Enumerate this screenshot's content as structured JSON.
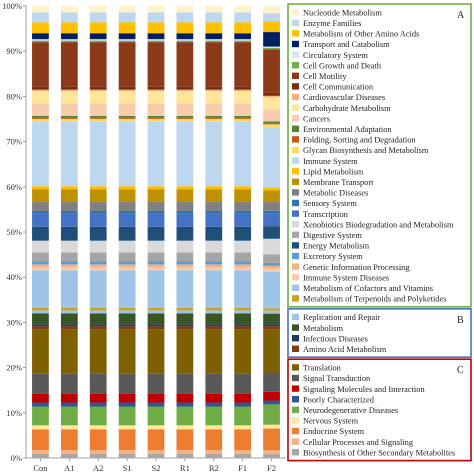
{
  "chart_data": {
    "type": "bar",
    "stacked": true,
    "title": "",
    "xlabel": "",
    "ylabel": "",
    "ylim": [
      0,
      100
    ],
    "y_tick_labels": [
      "0%",
      "10%",
      "20%",
      "30%",
      "40%",
      "50%",
      "60%",
      "70%",
      "80%",
      "90%",
      "100%"
    ],
    "grid": false,
    "legend_position": "right",
    "categories": [
      "Con",
      "A1",
      "A2",
      "S1",
      "S2",
      "R1",
      "R2",
      "F1",
      "F2"
    ],
    "series": [
      {
        "name": "Biosynthesis of Other Secondary Metabolites",
        "color": "#a6a6a6",
        "values": [
          0.8,
          0.8,
          0.8,
          0.8,
          0.8,
          0.8,
          0.8,
          0.8,
          0.8
        ]
      },
      {
        "name": "Cellular Processes and Signaling",
        "color": "#f4b183",
        "values": [
          0.8,
          0.8,
          0.8,
          0.8,
          0.8,
          0.8,
          0.8,
          0.8,
          0.8
        ]
      },
      {
        "name": "Endocrine System",
        "color": "#ed7d31",
        "values": [
          4.2,
          4.2,
          4.2,
          4.2,
          4.2,
          4.2,
          4.2,
          4.2,
          4.5
        ]
      },
      {
        "name": "Nervous System",
        "color": "#ffe699",
        "values": [
          0.8,
          0.8,
          0.8,
          0.8,
          0.8,
          0.8,
          0.8,
          0.8,
          0.8
        ]
      },
      {
        "name": "Neurodegenerative Diseases",
        "color": "#70ad47",
        "values": [
          3.8,
          3.8,
          3.8,
          3.8,
          3.8,
          3.8,
          3.8,
          3.8,
          4.2
        ]
      },
      {
        "name": "Poorly Characterized",
        "color": "#2f5597",
        "values": [
          0.8,
          0.8,
          0.8,
          0.8,
          0.8,
          0.8,
          0.8,
          0.8,
          0.8
        ]
      },
      {
        "name": "Signaling Molecules and Interaction",
        "color": "#c00000",
        "values": [
          1.8,
          1.8,
          1.8,
          1.8,
          1.8,
          1.8,
          1.8,
          1.8,
          1.8
        ]
      },
      {
        "name": "Signal Transduction",
        "color": "#595959",
        "values": [
          4.0,
          4.0,
          4.0,
          4.0,
          4.0,
          4.0,
          4.0,
          4.0,
          4.0
        ]
      },
      {
        "name": "Translation",
        "color": "#7f6000",
        "values": [
          9.0,
          9.0,
          9.0,
          9.0,
          9.0,
          9.0,
          9.0,
          9.0,
          9.0
        ]
      },
      {
        "name": "Amino Acid Metabolism",
        "color": "#843c0c",
        "values": [
          0.6,
          0.6,
          0.6,
          0.6,
          0.6,
          0.6,
          0.6,
          0.6,
          0.6
        ]
      },
      {
        "name": "Infectious Diseases",
        "color": "#1f3864",
        "values": [
          0.4,
          0.4,
          0.4,
          0.4,
          0.4,
          0.4,
          0.4,
          0.4,
          0.4
        ]
      },
      {
        "name": "Metabolism",
        "color": "#375623",
        "values": [
          2.2,
          2.2,
          2.2,
          2.2,
          2.2,
          2.2,
          2.2,
          2.2,
          2.2
        ]
      },
      {
        "name": "Replication and Repair",
        "color": "#9dc3e6",
        "values": [
          0.6,
          0.6,
          0.6,
          0.6,
          0.6,
          0.6,
          0.6,
          0.6,
          0.6
        ]
      },
      {
        "name": "Metabolism of Terpenoids and Polyketides",
        "color": "#c9a227",
        "values": [
          0.5,
          0.5,
          0.5,
          0.5,
          0.5,
          0.5,
          0.5,
          0.5,
          0.5
        ]
      },
      {
        "name": "Metabolism of Cofactors and Vitamins",
        "color": "#9dc3e6",
        "values": [
          7.6,
          7.6,
          7.6,
          7.6,
          7.6,
          7.6,
          7.6,
          7.6,
          7.6
        ]
      },
      {
        "name": "Immune System Diseases",
        "color": "#f8cbad",
        "values": [
          0.6,
          0.6,
          0.6,
          0.6,
          0.6,
          0.6,
          0.6,
          0.6,
          0.6
        ]
      },
      {
        "name": "Genetic Information Processing",
        "color": "#f4b183",
        "values": [
          0.6,
          0.6,
          0.6,
          0.6,
          0.6,
          0.6,
          0.6,
          0.6,
          0.6
        ]
      },
      {
        "name": "Excretory System",
        "color": "#5b9bd5",
        "values": [
          0.6,
          0.6,
          0.6,
          0.6,
          0.6,
          0.6,
          0.6,
          0.6,
          0.6
        ]
      },
      {
        "name": "Digestive System",
        "color": "#a5a5a5",
        "values": [
          1.8,
          1.8,
          1.8,
          1.8,
          1.8,
          1.8,
          1.8,
          1.8,
          1.8
        ]
      },
      {
        "name": "Xenobiotics Biodegradation and Metabolism",
        "color": "#d9d9d9",
        "values": [
          2.4,
          2.4,
          2.4,
          2.4,
          2.4,
          2.4,
          2.4,
          2.4,
          3.2
        ]
      },
      {
        "name": "Energy Metabolism",
        "color": "#1f4e79",
        "values": [
          2.8,
          2.8,
          2.8,
          2.8,
          2.8,
          2.8,
          2.8,
          2.8,
          2.6
        ]
      },
      {
        "name": "Transcription",
        "color": "#4472c4",
        "values": [
          2.6,
          2.6,
          2.6,
          2.6,
          2.6,
          2.6,
          2.6,
          2.6,
          2.6
        ]
      },
      {
        "name": "Sensory System",
        "color": "#2e75b6",
        "values": [
          0.6,
          0.6,
          0.6,
          0.6,
          0.6,
          0.6,
          0.6,
          0.6,
          0.6
        ]
      },
      {
        "name": "Metabolic Diseases",
        "color": "#808080",
        "values": [
          1.8,
          1.8,
          1.8,
          1.8,
          1.8,
          1.8,
          1.8,
          1.8,
          1.8
        ]
      },
      {
        "name": "Membrane Transport",
        "color": "#bf9000",
        "values": [
          2.6,
          2.6,
          2.6,
          2.6,
          2.6,
          2.6,
          2.6,
          2.6,
          2.4
        ]
      },
      {
        "name": "Lipid Metabolism",
        "color": "#ffc000",
        "values": [
          0.6,
          0.6,
          0.6,
          0.6,
          0.6,
          0.6,
          0.6,
          0.6,
          0.6
        ]
      },
      {
        "name": "Immune System",
        "color": "#bdd7ee",
        "values": [
          13.0,
          13.0,
          13.0,
          13.0,
          13.0,
          13.0,
          13.0,
          13.0,
          12.5
        ]
      },
      {
        "name": "Glycan Biosynthesis and Metabolism",
        "color": "#ffd966",
        "values": [
          0.6,
          0.6,
          0.6,
          0.6,
          0.6,
          0.6,
          0.6,
          0.6,
          0.6
        ]
      },
      {
        "name": "Folding, Sorting and Degradation",
        "color": "#c55a11",
        "values": [
          0.3,
          0.3,
          0.3,
          0.3,
          0.3,
          0.3,
          0.3,
          0.3,
          0.3
        ]
      },
      {
        "name": "Environmental Adaptation",
        "color": "#548235",
        "values": [
          0.3,
          0.3,
          0.3,
          0.3,
          0.3,
          0.3,
          0.3,
          0.3,
          0.3
        ]
      },
      {
        "name": "Cancers",
        "color": "#f8cbad",
        "values": [
          2.5,
          2.5,
          2.5,
          2.5,
          2.5,
          2.5,
          2.5,
          2.5,
          2.5
        ]
      },
      {
        "name": "Carbohydrate Metabolism",
        "color": "#ffe699",
        "values": [
          2.5,
          2.5,
          2.5,
          2.5,
          2.5,
          2.5,
          2.5,
          2.5,
          2.5
        ]
      },
      {
        "name": "Cardiovascular Diseases",
        "color": "#f4b183",
        "values": [
          0.3,
          0.3,
          0.3,
          0.3,
          0.3,
          0.3,
          0.3,
          0.3,
          0.3
        ]
      },
      {
        "name": "Cell Communication",
        "color": "#7b2c0e",
        "values": [
          0.6,
          0.6,
          0.6,
          0.6,
          0.6,
          0.6,
          0.6,
          0.6,
          0.6
        ]
      },
      {
        "name": "Cell Motility",
        "color": "#8b3a1a",
        "values": [
          9.0,
          9.0,
          9.0,
          9.0,
          9.0,
          9.0,
          9.0,
          9.0,
          9.0
        ]
      },
      {
        "name": "Cell Growth and Death",
        "color": "#70ad47",
        "values": [
          0.3,
          0.3,
          0.3,
          0.3,
          0.3,
          0.3,
          0.3,
          0.3,
          0.3
        ]
      },
      {
        "name": "Circulatory System",
        "color": "#d9e1f2",
        "values": [
          0.3,
          0.3,
          0.3,
          0.3,
          0.3,
          0.3,
          0.3,
          0.3,
          0.3
        ]
      },
      {
        "name": "Transport and Catabolism",
        "color": "#002060",
        "values": [
          1.2,
          1.2,
          1.2,
          1.2,
          1.2,
          1.2,
          1.2,
          1.2,
          3.0
        ]
      },
      {
        "name": "Metabolism of Other Amino Acids",
        "color": "#ffc000",
        "values": [
          2.2,
          2.2,
          2.2,
          2.2,
          2.2,
          2.2,
          2.2,
          2.2,
          2.2
        ]
      },
      {
        "name": "Enzyme Families",
        "color": "#bdd7ee",
        "values": [
          2.0,
          2.0,
          2.0,
          2.0,
          2.0,
          2.0,
          2.0,
          2.0,
          1.7
        ]
      },
      {
        "name": "Nucleotide Metabolism",
        "color": "#fff2cc",
        "values": [
          1.3,
          1.3,
          1.3,
          1.3,
          1.3,
          1.3,
          1.3,
          1.3,
          1.5
        ]
      }
    ],
    "legend_groups": [
      {
        "label": "A",
        "border_color": "#70ad47",
        "items": [
          "Nucleotide Metabolism",
          "Enzyme Families",
          "Metabolism of Other Amino Acids",
          "Transport and Catabolism",
          "Circulatory System",
          "Cell Growth and Death",
          "Cell Motility",
          "Cell Communication",
          "Cardiovascular Diseases",
          "Carbohydrate Metabolism",
          "Cancers",
          "Environmental Adaptation",
          "Folding, Sorting and Degradation",
          "Glycan Biosynthesis and Metabolism",
          "Immune System",
          "Lipid Metabolism",
          "Membrane Transport",
          "Metabolic Diseases",
          "Sensory System",
          "Transcription",
          "Xenobiotics Biodegradation and Metabolism",
          "Digestive System",
          "Energy Metabolism",
          "Excretory System",
          "Genetic Information Processing",
          "Immune System Diseases",
          "Metabolism of Cofactors and Vitamins",
          "Metabolism of Terpenoids and Polyketides"
        ]
      },
      {
        "label": "B",
        "border_color": "#4472c4",
        "items": [
          "Replication and Repair",
          "Metabolism",
          "Infectious Diseases",
          "Amino Acid Metabolism"
        ]
      },
      {
        "label": "C",
        "border_color": "#c00000",
        "items": [
          "Translation",
          "Signal Transduction",
          "Signaling Molecules and Interaction",
          "Poorly Characterized",
          "Neurodegenerative Diseases",
          "Nervous System",
          "Endocrine System",
          "Cellular Processes and Signaling",
          "Biosynthesis of Other Secondary Metabolites"
        ]
      }
    ]
  }
}
